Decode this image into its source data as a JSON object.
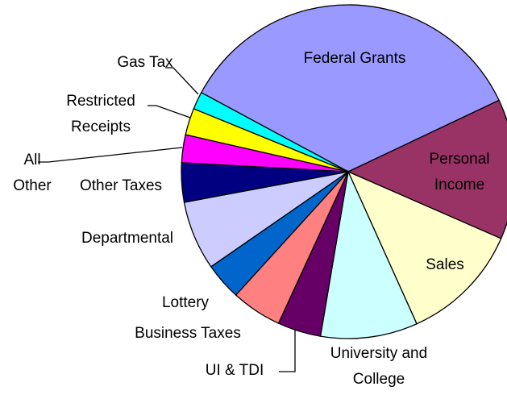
{
  "chart_data": {
    "type": "pie",
    "categories": [
      "Federal Grants",
      "Personal Income",
      "Sales",
      "University and College",
      "UI & TDI",
      "Business Taxes",
      "Lottery",
      "Departmental",
      "Other Taxes",
      "All Other",
      "Restricted Receipts",
      "Gas Tax"
    ],
    "values": [
      35.1,
      13.6,
      11.7,
      9.4,
      4.2,
      4.9,
      3.6,
      6.7,
      3.8,
      2.7,
      2.6,
      1.7
    ],
    "colors": [
      "#9999ff",
      "#993366",
      "#ffffcc",
      "#ccffff",
      "#660066",
      "#ff8080",
      "#0066cc",
      "#ccccff",
      "#000080",
      "#ff00ff",
      "#ffff00",
      "#00ffff"
    ]
  }
}
